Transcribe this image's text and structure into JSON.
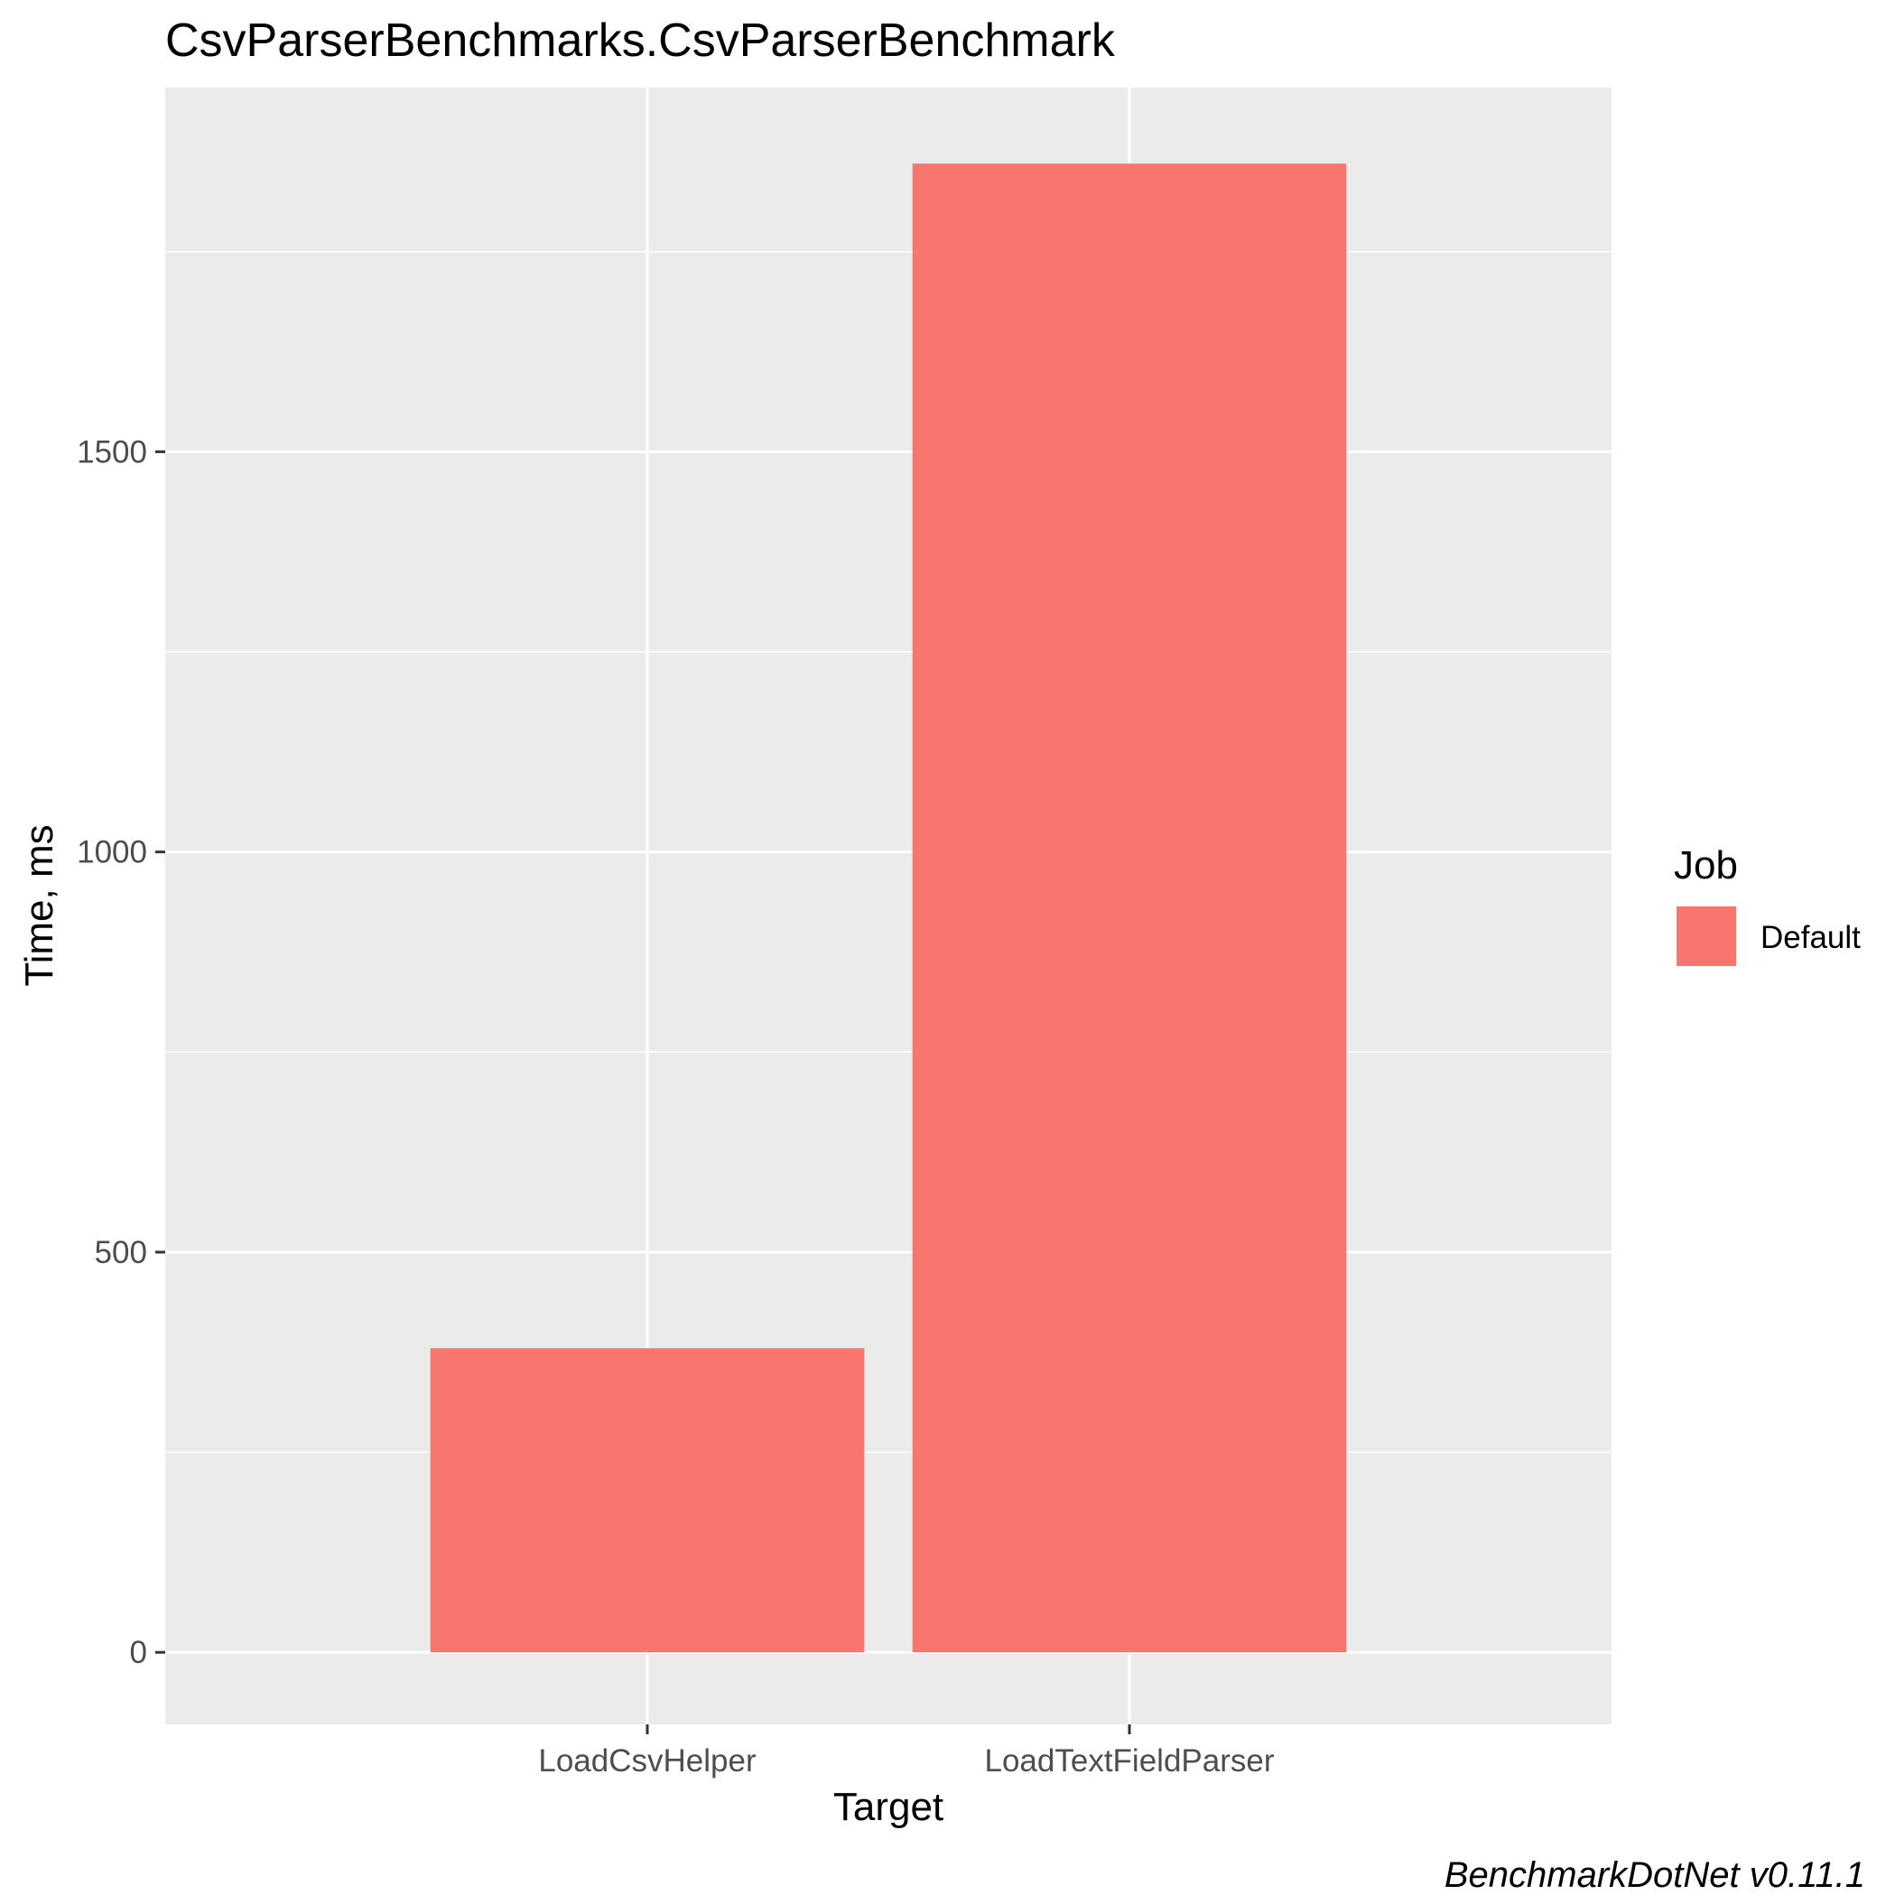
{
  "chart_data": {
    "type": "bar",
    "title": "CsvParserBenchmarks.CsvParserBenchmark",
    "xlabel": "Target",
    "ylabel": "Time, ms",
    "categories": [
      "LoadCsvHelper",
      "LoadTextFieldParser"
    ],
    "series": [
      {
        "name": "Default",
        "values": [
          380,
          1860
        ]
      }
    ],
    "ylim": [
      -90,
      1955
    ],
    "yticks": [
      0,
      500,
      1000,
      1500
    ],
    "ytick_labels": [
      "0",
      "500",
      "1000",
      "1500"
    ],
    "y_minor_gridlines": [
      250,
      750,
      1250,
      1750
    ],
    "grid": true,
    "legend": {
      "title": "Job",
      "position": "right",
      "items": [
        "Default"
      ]
    },
    "caption": "BenchmarkDotNet v0.11.1"
  },
  "colors": {
    "bar": "#F8766D",
    "panel_background": "#EBEBEB",
    "grid": "#FFFFFF",
    "axis_text": "#4D4D4D",
    "tick": "#333333"
  }
}
